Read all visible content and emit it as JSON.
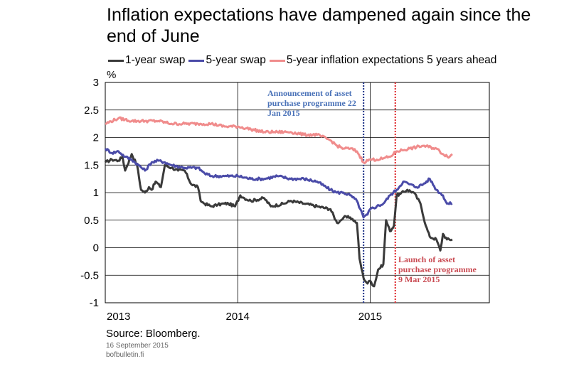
{
  "chart_data": {
    "type": "line",
    "title": "Inflation expectations have dampened again since the end of June",
    "ylabel": "%",
    "ylim": [
      -1,
      3
    ],
    "yticks": [
      "3",
      "2.5",
      "2",
      "1.5",
      "1",
      "0.5",
      "0",
      "-0.5",
      "-1"
    ],
    "xlim": [
      2013.0,
      2015.9
    ],
    "xticks": [
      {
        "x": 2013.0,
        "label": "2013"
      },
      {
        "x": 2014.0,
        "label": "2014"
      },
      {
        "x": 2015.0,
        "label": "2015"
      }
    ],
    "grid": true,
    "legend_placement": "top",
    "series": [
      {
        "name": "1-year swap",
        "color": "#3a3a3a",
        "x": [
          2013.0,
          2013.05,
          2013.1,
          2013.13,
          2013.15,
          2013.2,
          2013.24,
          2013.27,
          2013.3,
          2013.33,
          2013.35,
          2013.38,
          2013.42,
          2013.45,
          2013.5,
          2013.55,
          2013.6,
          2013.65,
          2013.7,
          2013.72,
          2013.75,
          2013.8,
          2013.85,
          2013.9,
          2013.93,
          2013.98,
          2014.02,
          2014.05,
          2014.1,
          2014.2,
          2014.25,
          2014.35,
          2014.4,
          2014.5,
          2014.6,
          2014.7,
          2014.75,
          2014.78,
          2014.8,
          2014.85,
          2014.9,
          2014.92,
          2014.95,
          2014.98,
          2015.0,
          2015.03,
          2015.06,
          2015.1,
          2015.12,
          2015.15,
          2015.18,
          2015.2,
          2015.23,
          2015.28,
          2015.33,
          2015.38,
          2015.42,
          2015.45,
          2015.5,
          2015.53,
          2015.55,
          2015.58,
          2015.62
        ],
        "values": [
          1.55,
          1.6,
          1.58,
          1.65,
          1.4,
          1.7,
          1.5,
          1.05,
          1.0,
          1.1,
          1.05,
          1.2,
          1.1,
          1.5,
          1.45,
          1.4,
          1.4,
          1.15,
          1.1,
          0.85,
          0.8,
          0.75,
          0.78,
          0.8,
          0.8,
          0.75,
          0.95,
          0.9,
          0.85,
          0.9,
          0.75,
          0.8,
          0.85,
          0.8,
          0.75,
          0.7,
          0.45,
          0.5,
          0.55,
          0.55,
          0.45,
          -0.2,
          -0.55,
          -0.65,
          -0.6,
          -0.7,
          -0.4,
          -0.3,
          0.5,
          0.3,
          0.4,
          0.95,
          0.98,
          1.05,
          1.0,
          0.8,
          0.4,
          0.2,
          0.15,
          -0.05,
          0.25,
          0.15,
          0.15
        ]
      },
      {
        "name": "5-year swap",
        "color": "#4a4ba8",
        "x": [
          2013.0,
          2013.05,
          2013.1,
          2013.15,
          2013.2,
          2013.25,
          2013.3,
          2013.35,
          2013.4,
          2013.45,
          2013.5,
          2013.6,
          2013.7,
          2013.75,
          2013.8,
          2013.9,
          2014.0,
          2014.1,
          2014.2,
          2014.3,
          2014.4,
          2014.5,
          2014.6,
          2014.7,
          2014.75,
          2014.8,
          2014.85,
          2014.9,
          2014.95,
          2014.98,
          2015.0,
          2015.05,
          2015.1,
          2015.15,
          2015.2,
          2015.25,
          2015.3,
          2015.35,
          2015.4,
          2015.45,
          2015.5,
          2015.55,
          2015.58,
          2015.62
        ],
        "values": [
          1.8,
          1.72,
          1.75,
          1.65,
          1.6,
          1.5,
          1.4,
          1.55,
          1.58,
          1.55,
          1.5,
          1.45,
          1.45,
          1.35,
          1.3,
          1.3,
          1.3,
          1.25,
          1.25,
          1.3,
          1.25,
          1.25,
          1.2,
          1.05,
          1.0,
          1.0,
          0.95,
          0.85,
          0.55,
          0.6,
          0.7,
          0.75,
          0.8,
          0.95,
          1.05,
          1.2,
          1.15,
          1.1,
          1.15,
          1.25,
          1.05,
          0.95,
          0.8,
          0.8
        ]
      },
      {
        "name": "5-year inflation expectations 5 years ahead",
        "color": "#f08c8c",
        "x": [
          2013.0,
          2013.1,
          2013.2,
          2013.3,
          2013.4,
          2013.5,
          2013.6,
          2013.7,
          2013.8,
          2013.9,
          2014.0,
          2014.1,
          2014.2,
          2014.3,
          2014.4,
          2014.5,
          2014.6,
          2014.7,
          2014.75,
          2014.8,
          2014.85,
          2014.9,
          2014.95,
          2015.0,
          2015.05,
          2015.1,
          2015.15,
          2015.2,
          2015.3,
          2015.4,
          2015.5,
          2015.55,
          2015.6,
          2015.62
        ],
        "values": [
          2.25,
          2.35,
          2.3,
          2.3,
          2.3,
          2.25,
          2.25,
          2.25,
          2.25,
          2.2,
          2.2,
          2.15,
          2.1,
          2.1,
          2.1,
          2.05,
          2.05,
          1.95,
          1.85,
          1.8,
          1.8,
          1.75,
          1.55,
          1.6,
          1.6,
          1.62,
          1.65,
          1.75,
          1.8,
          1.85,
          1.8,
          1.7,
          1.65,
          1.7
        ]
      }
    ],
    "vlines": [
      {
        "x": 2014.95,
        "color": "#2c3f8f",
        "style": "dotted"
      },
      {
        "x": 2015.19,
        "color": "#e0383c",
        "style": "dotted"
      }
    ],
    "annotations": [
      {
        "lines": [
          "Announcement of asset",
          "purchase programme 22",
          "Jan 2015"
        ],
        "color": "#4a72b8"
      },
      {
        "lines": [
          "Launch of asset",
          "purchase programme",
          "9 Mar 2015"
        ],
        "color": "#c94a52"
      }
    ]
  },
  "footer": {
    "source": "Source: Bloomberg.",
    "date": "16 September 2015",
    "site": "bofbulletin.fi"
  }
}
